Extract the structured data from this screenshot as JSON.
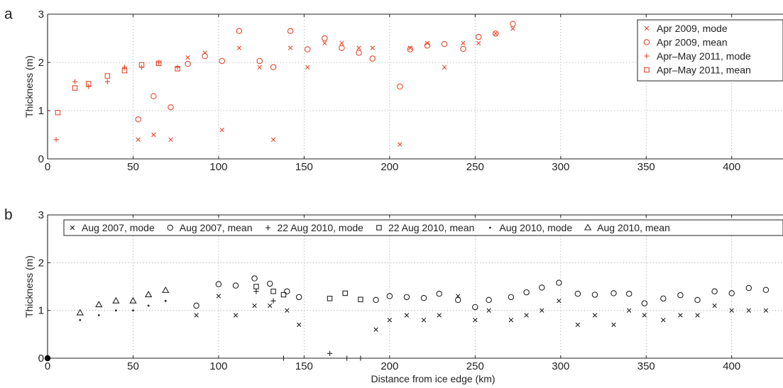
{
  "chart_data": [
    {
      "panel_label": "a",
      "type": "scatter",
      "ylabel": "Thickness (m)",
      "xlabel": "",
      "xlim": [
        0,
        430
      ],
      "ylim": [
        0,
        3
      ],
      "x_ticks": [
        "0",
        "50",
        "100",
        "150",
        "200",
        "250",
        "300",
        "350",
        "400"
      ],
      "y_ticks": [
        "0",
        "1",
        "2",
        "3"
      ],
      "grid": true,
      "legend_position": "top-right",
      "legend_layout": "vertical",
      "series": [
        {
          "name": "Apr 2009, mode",
          "marker": "x",
          "color": "#e8472b",
          "points": [
            [
              53,
              0.4
            ],
            [
              62,
              0.5
            ],
            [
              72,
              0.4
            ],
            [
              82,
              2.1
            ],
            [
              92,
              2.2
            ],
            [
              102,
              0.6
            ],
            [
              112,
              2.3
            ],
            [
              124,
              1.9
            ],
            [
              132,
              0.4
            ],
            [
              142,
              2.3
            ],
            [
              152,
              1.9
            ],
            [
              162,
              2.4
            ],
            [
              172,
              2.4
            ],
            [
              182,
              2.3
            ],
            [
              190,
              2.3
            ],
            [
              206,
              0.3
            ],
            [
              212,
              2.3
            ],
            [
              222,
              2.4
            ],
            [
              232,
              1.9
            ],
            [
              243,
              2.4
            ],
            [
              252,
              2.4
            ],
            [
              262,
              2.6
            ],
            [
              272,
              2.7
            ]
          ]
        },
        {
          "name": "Apr 2009, mean",
          "marker": "circle",
          "color": "#e8472b",
          "points": [
            [
              53,
              0.82
            ],
            [
              62,
              1.3
            ],
            [
              72,
              1.07
            ],
            [
              82,
              1.97
            ],
            [
              92,
              2.13
            ],
            [
              102,
              2.03
            ],
            [
              112,
              2.65
            ],
            [
              124,
              2.03
            ],
            [
              132,
              1.9
            ],
            [
              142,
              2.65
            ],
            [
              152,
              2.27
            ],
            [
              162,
              2.5
            ],
            [
              172,
              2.3
            ],
            [
              182,
              2.2
            ],
            [
              190,
              2.08
            ],
            [
              206,
              1.5
            ],
            [
              212,
              2.27
            ],
            [
              222,
              2.35
            ],
            [
              232,
              2.38
            ],
            [
              243,
              2.28
            ],
            [
              252,
              2.53
            ],
            [
              262,
              2.6
            ],
            [
              272,
              2.8
            ]
          ]
        },
        {
          "name": "Apr–May 2011, mode",
          "marker": "plus",
          "color": "#e8472b",
          "points": [
            [
              5,
              0.4
            ],
            [
              16,
              1.6
            ],
            [
              24,
              1.5
            ],
            [
              35,
              1.6
            ],
            [
              45,
              1.9
            ],
            [
              55,
              1.9
            ],
            [
              65,
              2.0
            ],
            [
              76,
              1.9
            ]
          ]
        },
        {
          "name": "Apr–May 2011, mean",
          "marker": "square",
          "color": "#e8472b",
          "points": [
            [
              6,
              0.96
            ],
            [
              16,
              1.47
            ],
            [
              24,
              1.56
            ],
            [
              35,
              1.72
            ],
            [
              45,
              1.83
            ],
            [
              55,
              1.95
            ],
            [
              65,
              1.98
            ],
            [
              76,
              1.87
            ]
          ]
        }
      ]
    },
    {
      "panel_label": "b",
      "type": "scatter",
      "ylabel": "Thickness (m)",
      "xlabel": "Distance from ice edge (km)",
      "xlim": [
        0,
        430
      ],
      "ylim": [
        0,
        3
      ],
      "x_ticks": [
        "0",
        "50",
        "100",
        "150",
        "200",
        "250",
        "300",
        "350",
        "400"
      ],
      "y_ticks": [
        "0",
        "1",
        "2",
        "3"
      ],
      "grid": true,
      "legend_position": "top",
      "legend_layout": "horizontal",
      "series": [
        {
          "name": "Aug 2007, mode",
          "marker": "x",
          "color": "#222222",
          "points": [
            [
              87,
              0.9
            ],
            [
              100,
              1.3
            ],
            [
              110,
              0.9
            ],
            [
              121,
              1.1
            ],
            [
              130,
              1.1
            ],
            [
              140,
              1.0
            ],
            [
              147,
              0.7
            ],
            [
              192,
              0.6
            ],
            [
              200,
              0.8
            ],
            [
              210,
              0.9
            ],
            [
              220,
              0.8
            ],
            [
              229,
              0.9
            ],
            [
              240,
              1.3
            ],
            [
              250,
              0.8
            ],
            [
              258,
              1.0
            ],
            [
              271,
              0.8
            ],
            [
              280,
              0.9
            ],
            [
              289,
              1.0
            ],
            [
              299,
              1.2
            ],
            [
              310,
              0.7
            ],
            [
              320,
              0.9
            ],
            [
              331,
              0.7
            ],
            [
              340,
              1.0
            ],
            [
              349,
              0.9
            ],
            [
              360,
              0.8
            ],
            [
              370,
              0.9
            ],
            [
              380,
              0.9
            ],
            [
              390,
              1.1
            ],
            [
              400,
              1.0
            ],
            [
              410,
              1.0
            ],
            [
              420,
              1.0
            ]
          ]
        },
        {
          "name": "Aug 2007, mean",
          "marker": "circle",
          "color": "#222222",
          "points": [
            [
              87,
              1.1
            ],
            [
              100,
              1.55
            ],
            [
              110,
              1.52
            ],
            [
              121,
              1.67
            ],
            [
              130,
              1.56
            ],
            [
              140,
              1.4
            ],
            [
              147,
              1.28
            ],
            [
              192,
              1.22
            ],
            [
              200,
              1.3
            ],
            [
              210,
              1.28
            ],
            [
              220,
              1.26
            ],
            [
              229,
              1.35
            ],
            [
              240,
              1.22
            ],
            [
              250,
              1.07
            ],
            [
              258,
              1.22
            ],
            [
              271,
              1.28
            ],
            [
              280,
              1.38
            ],
            [
              289,
              1.48
            ],
            [
              299,
              1.58
            ],
            [
              310,
              1.35
            ],
            [
              320,
              1.33
            ],
            [
              331,
              1.36
            ],
            [
              340,
              1.35
            ],
            [
              349,
              1.15
            ],
            [
              360,
              1.25
            ],
            [
              370,
              1.32
            ],
            [
              380,
              1.22
            ],
            [
              390,
              1.4
            ],
            [
              400,
              1.36
            ],
            [
              410,
              1.47
            ],
            [
              420,
              1.43
            ]
          ]
        },
        {
          "name": "22 Aug 2010, mode",
          "marker": "plus",
          "color": "#222222",
          "points": [
            [
              122,
              1.4
            ],
            [
              132,
              1.2
            ],
            [
              138,
              0.0
            ],
            [
              165,
              0.1
            ],
            [
              175,
              0.0
            ],
            [
              183,
              0.0
            ]
          ]
        },
        {
          "name": "22 Aug 2010, mean",
          "marker": "square",
          "color": "#222222",
          "points": [
            [
              122,
              1.5
            ],
            [
              132,
              1.4
            ],
            [
              138,
              1.33
            ],
            [
              165,
              1.25
            ],
            [
              174,
              1.36
            ],
            [
              183,
              1.23
            ]
          ]
        },
        {
          "name": "Aug 2010, mode",
          "marker": "dot",
          "color": "#222222",
          "points": [
            [
              19,
              0.8
            ],
            [
              30,
              0.9
            ],
            [
              40,
              1.0
            ],
            [
              50,
              1.0
            ],
            [
              59,
              1.1
            ],
            [
              69,
              1.2
            ]
          ]
        },
        {
          "name": "Aug 2010, mean",
          "marker": "triangle",
          "color": "#222222",
          "points": [
            [
              19,
              0.95
            ],
            [
              30,
              1.12
            ],
            [
              40,
              1.2
            ],
            [
              50,
              1.2
            ],
            [
              59,
              1.33
            ],
            [
              69,
              1.42
            ]
          ]
        }
      ],
      "extra_points": [
        {
          "marker": "filled-circle",
          "color": "#000000",
          "x": 0,
          "y": 0
        }
      ]
    }
  ]
}
